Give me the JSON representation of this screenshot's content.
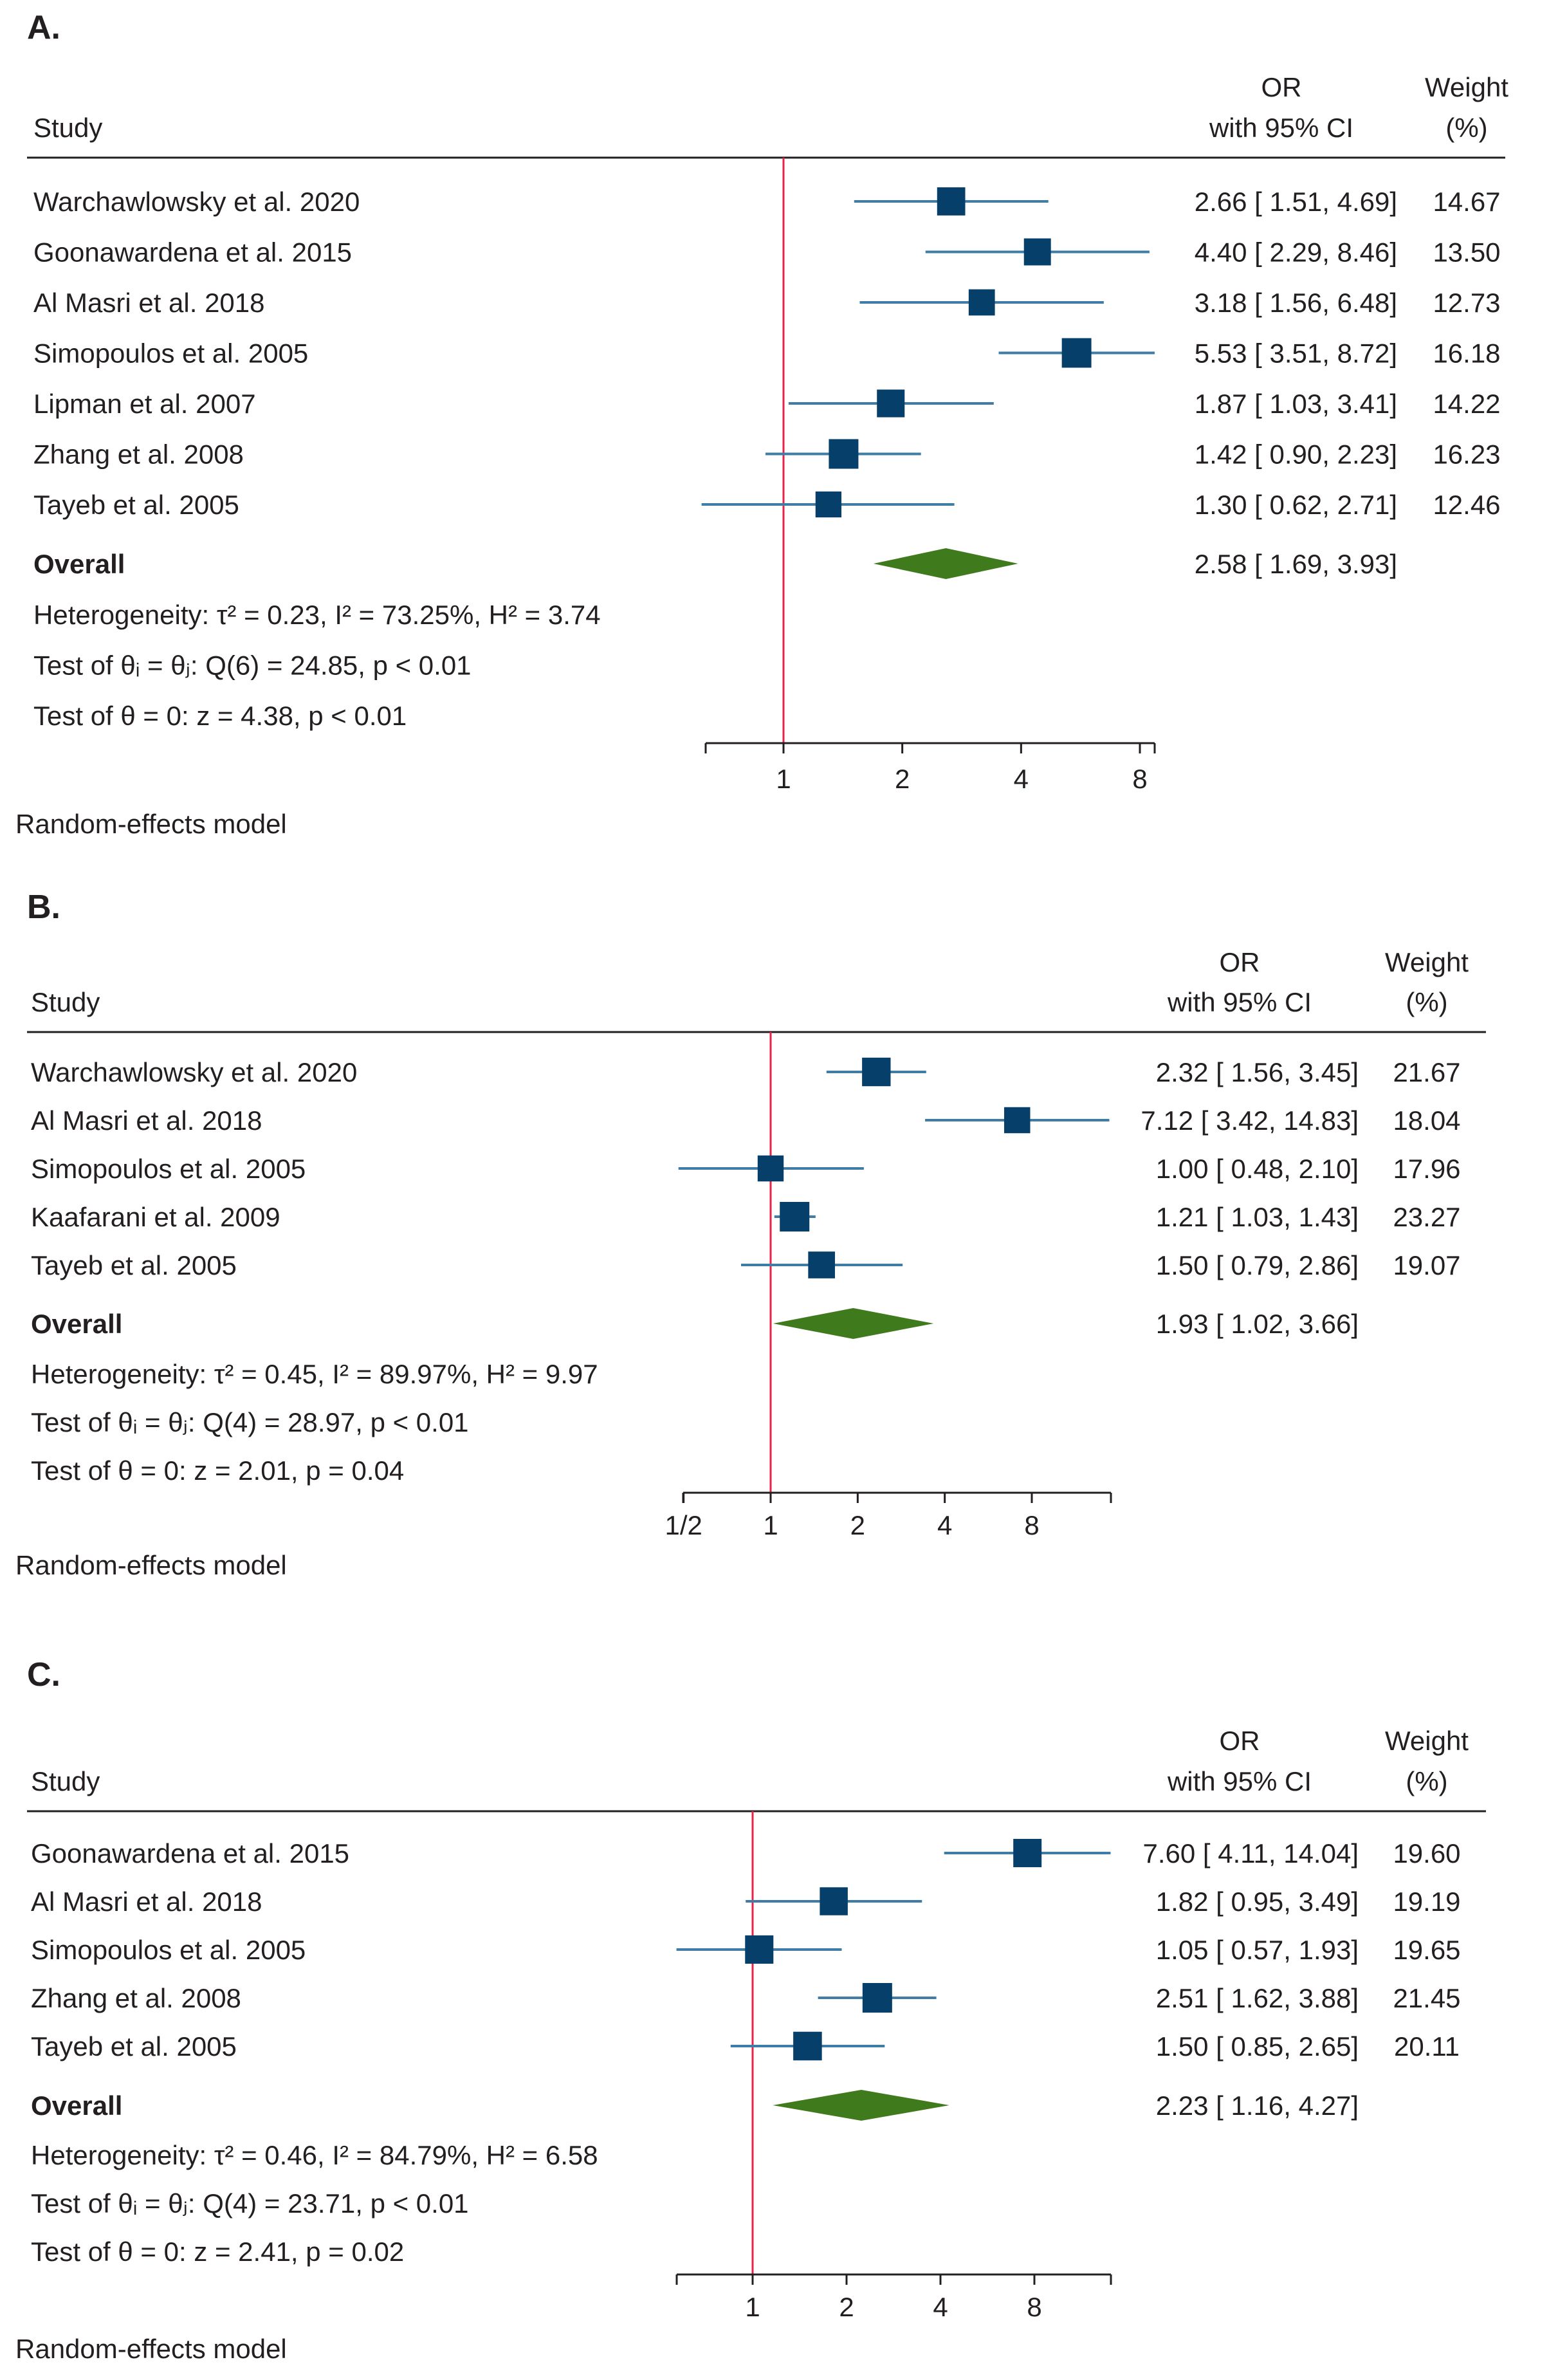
{
  "figure": {
    "panels": [
      {
        "label": "A.",
        "header": {
          "study": "Study",
          "or_line1": "OR",
          "or_line2": "with 95% CI",
          "weight_line1": "Weight",
          "weight_line2": "(%)"
        },
        "overall_label": "Overall",
        "overall_text": "2.58 [ 1.69, 3.93]",
        "heterogeneity": [
          "Heterogeneity: τ² = 0.23, I² = 73.25%, H² = 3.74",
          "Test of θᵢ = θⱼ: Q(6) = 24.85, p < 0.01",
          "Test of θ = 0: z = 4.38, p < 0.01"
        ],
        "model_label": "Random-effects model"
      },
      {
        "label": "B.",
        "header": {
          "study": "Study",
          "or_line1": "OR",
          "or_line2": "with 95% CI",
          "weight_line1": "Weight",
          "weight_line2": "(%)"
        },
        "overall_label": "Overall",
        "overall_text": "1.93 [ 1.02, 3.66]",
        "heterogeneity": [
          "Heterogeneity: τ² = 0.45, I² = 89.97%, H² = 9.97",
          "Test of θᵢ = θⱼ: Q(4) = 28.97, p < 0.01",
          "Test of θ = 0: z = 2.01, p = 0.04"
        ],
        "model_label": "Random-effects model"
      },
      {
        "label": "C.",
        "header": {
          "study": "Study",
          "or_line1": "OR",
          "or_line2": "with 95% CI",
          "weight_line1": "Weight",
          "weight_line2": "(%)"
        },
        "overall_label": "Overall",
        "overall_text": "2.23 [ 1.16, 4.27]",
        "heterogeneity": [
          "Heterogeneity: τ² = 0.46, I² = 84.79%, H² = 6.58",
          "Test of θᵢ = θⱼ: Q(4) = 23.71, p < 0.01",
          "Test of θ = 0: z = 2.41, p = 0.02"
        ],
        "model_label": "Random-effects model"
      }
    ]
  },
  "colors": {
    "square": "#073f6b",
    "ci_line": "#3f7ca6",
    "diamond": "#3f7a1c",
    "ref_line": "#e8224a",
    "axis": "#231f20"
  },
  "chart_data": [
    {
      "type": "forest",
      "title": "A.",
      "xscale": "log2",
      "xlim": [
        0.63,
        9.5
      ],
      "ticks": [
        1,
        2,
        4,
        8
      ],
      "tick_labels": [
        "1",
        "2",
        "4",
        "8"
      ],
      "reference_line": 1,
      "studies": [
        {
          "name": "Warchawlowsky et al. 2020",
          "or": 2.66,
          "lo": 1.51,
          "hi": 4.69,
          "weight": 14.67,
          "ci_text": "2.66 [ 1.51, 4.69]",
          "weight_text": "14.67"
        },
        {
          "name": "Goonawardena et al. 2015",
          "or": 4.4,
          "lo": 2.29,
          "hi": 8.46,
          "weight": 13.5,
          "ci_text": "4.40 [ 2.29, 8.46]",
          "weight_text": "13.50"
        },
        {
          "name": "Al Masri et al. 2018",
          "or": 3.18,
          "lo": 1.56,
          "hi": 6.48,
          "weight": 12.73,
          "ci_text": "3.18 [ 1.56, 6.48]",
          "weight_text": "12.73"
        },
        {
          "name": "Simopoulos et al. 2005",
          "or": 5.53,
          "lo": 3.51,
          "hi": 8.72,
          "weight": 16.18,
          "ci_text": "5.53 [ 3.51, 8.72]",
          "weight_text": "16.18"
        },
        {
          "name": "Lipman et al. 2007",
          "or": 1.87,
          "lo": 1.03,
          "hi": 3.41,
          "weight": 14.22,
          "ci_text": "1.87 [ 1.03, 3.41]",
          "weight_text": "14.22"
        },
        {
          "name": "Zhang et al. 2008",
          "or": 1.42,
          "lo": 0.9,
          "hi": 2.23,
          "weight": 16.23,
          "ci_text": "1.42 [ 0.90, 2.23]",
          "weight_text": "16.23"
        },
        {
          "name": "Tayeb et al. 2005",
          "or": 1.3,
          "lo": 0.62,
          "hi": 2.71,
          "weight": 12.46,
          "ci_text": "1.30 [ 0.62, 2.71]",
          "weight_text": "12.46"
        }
      ],
      "overall": {
        "or": 2.58,
        "lo": 1.69,
        "hi": 3.93
      }
    },
    {
      "type": "forest",
      "title": "B.",
      "xscale": "log2",
      "xlim": [
        0.5,
        14.83
      ],
      "ticks": [
        0.5,
        1,
        2,
        4,
        8
      ],
      "tick_labels": [
        "1/2",
        "1",
        "2",
        "4",
        "8"
      ],
      "reference_line": 1,
      "studies": [
        {
          "name": "Warchawlowsky et al. 2020",
          "or": 2.32,
          "lo": 1.56,
          "hi": 3.45,
          "weight": 21.67,
          "ci_text": "2.32 [ 1.56, 3.45]",
          "weight_text": "21.67"
        },
        {
          "name": "Al Masri et al. 2018",
          "or": 7.12,
          "lo": 3.42,
          "hi": 14.83,
          "weight": 18.04,
          "ci_text": "7.12 [ 3.42, 14.83]",
          "weight_text": "18.04"
        },
        {
          "name": "Simopoulos et al. 2005",
          "or": 1.0,
          "lo": 0.48,
          "hi": 2.1,
          "weight": 17.96,
          "ci_text": "1.00 [ 0.48, 2.10]",
          "weight_text": "17.96"
        },
        {
          "name": "Kaafarani et al. 2009",
          "or": 1.21,
          "lo": 1.03,
          "hi": 1.43,
          "weight": 23.27,
          "ci_text": "1.21 [ 1.03, 1.43]",
          "weight_text": "23.27"
        },
        {
          "name": "Tayeb et al. 2005",
          "or": 1.5,
          "lo": 0.79,
          "hi": 2.86,
          "weight": 19.07,
          "ci_text": "1.50 [ 0.79, 2.86]",
          "weight_text": "19.07"
        }
      ],
      "overall": {
        "or": 1.93,
        "lo": 1.02,
        "hi": 3.66
      }
    },
    {
      "type": "forest",
      "title": "C.",
      "xscale": "log2",
      "xlim": [
        0.57,
        14.04
      ],
      "ticks": [
        1,
        2,
        4,
        8
      ],
      "tick_labels": [
        "1",
        "2",
        "4",
        "8"
      ],
      "reference_line": 1,
      "studies": [
        {
          "name": "Goonawardena et al. 2015",
          "or": 7.6,
          "lo": 4.11,
          "hi": 14.04,
          "weight": 19.6,
          "ci_text": "7.60 [ 4.11, 14.04]",
          "weight_text": "19.60"
        },
        {
          "name": "Al Masri et al. 2018",
          "or": 1.82,
          "lo": 0.95,
          "hi": 3.49,
          "weight": 19.19,
          "ci_text": "1.82 [ 0.95, 3.49]",
          "weight_text": "19.19"
        },
        {
          "name": "Simopoulos et al. 2005",
          "or": 1.05,
          "lo": 0.57,
          "hi": 1.93,
          "weight": 19.65,
          "ci_text": "1.05 [ 0.57, 1.93]",
          "weight_text": "19.65"
        },
        {
          "name": "Zhang et al. 2008",
          "or": 2.51,
          "lo": 1.62,
          "hi": 3.88,
          "weight": 21.45,
          "ci_text": "2.51 [ 1.62, 3.88]",
          "weight_text": "21.45"
        },
        {
          "name": "Tayeb et al. 2005",
          "or": 1.5,
          "lo": 0.85,
          "hi": 2.65,
          "weight": 20.11,
          "ci_text": "1.50 [ 0.85, 2.65]",
          "weight_text": "20.11"
        }
      ],
      "overall": {
        "or": 2.23,
        "lo": 1.16,
        "hi": 4.27
      }
    }
  ]
}
